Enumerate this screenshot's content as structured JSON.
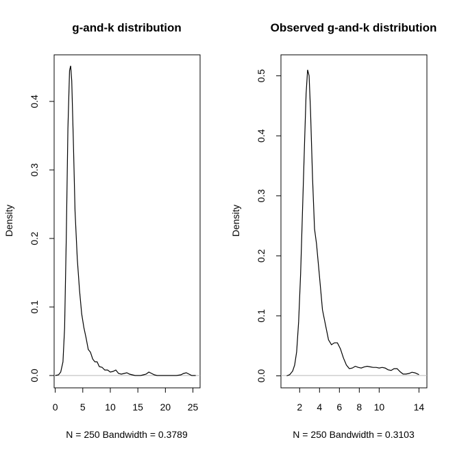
{
  "chart_data": [
    {
      "type": "line",
      "title": "g-and-k distribution",
      "xlabel": "N = 250   Bandwidth = 0.3789",
      "ylabel": "Density",
      "xlim": [
        -0.2,
        26.3
      ],
      "ylim": [
        -0.018,
        0.468
      ],
      "xticks": [
        0,
        5,
        10,
        15,
        20,
        25
      ],
      "yticks": [
        0.0,
        0.1,
        0.2,
        0.3,
        0.4
      ],
      "xtick_labels": [
        "0",
        "5",
        "10",
        "15",
        "20",
        "25"
      ],
      "ytick_labels": [
        "0.0",
        "0.1",
        "0.2",
        "0.3",
        "0.4"
      ],
      "baseline": 0,
      "grid": false,
      "series": [
        {
          "x": [
            0.0,
            0.6,
            1.0,
            1.4,
            1.7,
            2.0,
            2.3,
            2.6,
            2.8,
            3.0,
            3.3,
            3.6,
            4.0,
            4.4,
            4.8,
            5.2,
            5.6,
            6.0,
            6.4,
            6.8,
            7.2,
            7.6,
            8.0,
            8.5,
            9.0,
            9.5,
            10.0,
            10.5,
            11.0,
            11.5,
            12.0,
            12.5,
            13.0,
            13.5,
            14.0,
            14.5,
            15.0,
            15.5,
            16.0,
            16.5,
            17.0,
            17.5,
            18.0,
            18.5,
            19.0,
            20.0,
            21.0,
            22.0,
            22.8,
            23.3,
            23.8,
            24.3,
            24.8,
            25.5
          ],
          "y": [
            0.0,
            0.001,
            0.005,
            0.02,
            0.07,
            0.2,
            0.36,
            0.445,
            0.452,
            0.43,
            0.34,
            0.24,
            0.17,
            0.125,
            0.09,
            0.07,
            0.055,
            0.038,
            0.034,
            0.024,
            0.02,
            0.02,
            0.013,
            0.012,
            0.008,
            0.008,
            0.005,
            0.006,
            0.008,
            0.003,
            0.002,
            0.003,
            0.004,
            0.002,
            0.001,
            0.0,
            0.0,
            0.0,
            0.001,
            0.002,
            0.005,
            0.003,
            0.001,
            0.0,
            0.0,
            0.0,
            0.0,
            0.0,
            0.001,
            0.003,
            0.004,
            0.002,
            0.0,
            0.0
          ]
        }
      ]
    },
    {
      "type": "line",
      "title": "Observed g-and-k distribution",
      "xlabel": "N = 250   Bandwidth = 0.3103",
      "ylabel": "Density",
      "xlim": [
        0.12,
        14.8
      ],
      "ylim": [
        -0.02,
        0.535
      ],
      "xticks": [
        2,
        4,
        6,
        8,
        10,
        14
      ],
      "yticks": [
        0.0,
        0.1,
        0.2,
        0.3,
        0.4,
        0.5
      ],
      "xtick_labels": [
        "2",
        "4",
        "6",
        "8",
        "10",
        "14"
      ],
      "ytick_labels": [
        "0.0",
        "0.1",
        "0.2",
        "0.3",
        "0.4",
        "0.5"
      ],
      "baseline": 0,
      "grid": false,
      "series": [
        {
          "x": [
            0.7,
            1.0,
            1.3,
            1.5,
            1.7,
            1.9,
            2.1,
            2.3,
            2.5,
            2.65,
            2.8,
            2.95,
            3.1,
            3.3,
            3.5,
            3.7,
            4.0,
            4.3,
            4.6,
            4.9,
            5.2,
            5.5,
            5.8,
            6.1,
            6.4,
            6.7,
            7.0,
            7.3,
            7.6,
            7.9,
            8.2,
            8.5,
            8.8,
            9.1,
            9.4,
            9.7,
            10.0,
            10.3,
            10.6,
            10.9,
            11.2,
            11.5,
            11.8,
            12.1,
            12.4,
            12.7,
            13.0,
            13.3,
            13.6,
            14.0
          ],
          "y": [
            0.0,
            0.002,
            0.008,
            0.018,
            0.04,
            0.09,
            0.17,
            0.28,
            0.39,
            0.47,
            0.51,
            0.5,
            0.44,
            0.33,
            0.245,
            0.22,
            0.165,
            0.11,
            0.085,
            0.06,
            0.052,
            0.055,
            0.055,
            0.045,
            0.03,
            0.018,
            0.012,
            0.013,
            0.016,
            0.014,
            0.013,
            0.015,
            0.016,
            0.015,
            0.014,
            0.014,
            0.013,
            0.014,
            0.013,
            0.01,
            0.009,
            0.012,
            0.012,
            0.007,
            0.003,
            0.003,
            0.004,
            0.006,
            0.005,
            0.002
          ]
        }
      ]
    }
  ]
}
